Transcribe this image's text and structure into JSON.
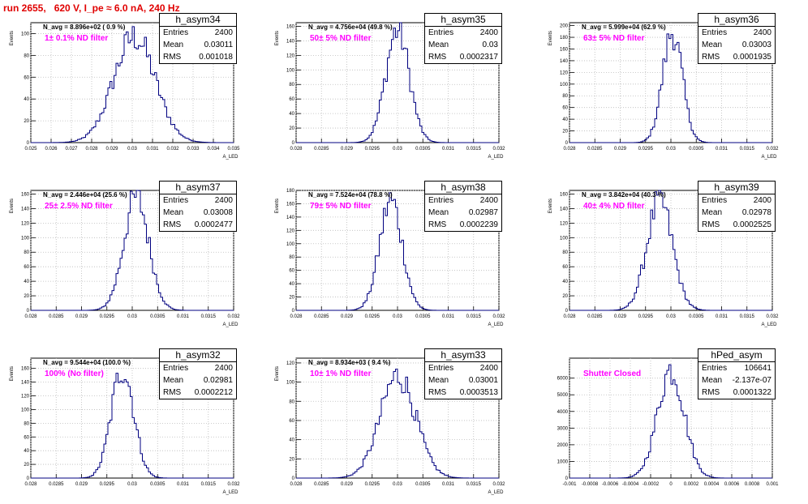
{
  "title": "run 2655,   620 V, I_pe ≈ 6.0 nA, 240 Hz",
  "colors": {
    "title": "#e00000",
    "hist": "#000080",
    "filter_text": "#ff00ff",
    "grid": "#bbbbbb"
  },
  "chart_data": [
    {
      "type": "histogram",
      "name": "h_asym34",
      "stats": {
        "entries_label": "Entries",
        "entries": "2400",
        "mean_label": "Mean",
        "mean": "0.03011",
        "rms_label": "RMS",
        "rms": "0.001018"
      },
      "annotation": "N_avg = 8.896e+02 ( 0.9 %)",
      "filter": "1± 0.1% ND filter",
      "ylabel": "Events",
      "xlabel": "A_LED",
      "xlim": [
        0.025,
        0.035
      ],
      "ylim": [
        0,
        110
      ],
      "xticks": [
        "0.025",
        "0.026",
        "0.027",
        "0.028",
        "0.029",
        "0.03",
        "0.031",
        "0.032",
        "0.033",
        "0.034",
        "0.035"
      ],
      "yticks": [
        0,
        20,
        40,
        60,
        80,
        100
      ],
      "gauss": {
        "mean": 0.03011,
        "sigma": 0.001018,
        "peak": 100
      }
    },
    {
      "type": "histogram",
      "name": "h_asym35",
      "stats": {
        "entries_label": "Entries",
        "entries": "2400",
        "mean_label": "Mean",
        "mean": "0.03",
        "rms_label": "RMS",
        "rms": "0.0002317"
      },
      "annotation": "N_avg = 4.756e+04 (49.8 %)",
      "filter": "50± 5% ND filter",
      "ylabel": "Events",
      "xlabel": "A_LED",
      "xlim": [
        0.028,
        0.032
      ],
      "ylim": [
        0,
        165
      ],
      "xticks": [
        "0.028",
        "0.0285",
        "0.029",
        "0.0295",
        "0.03",
        "0.0305",
        "0.031",
        "0.0315",
        "0.032"
      ],
      "yticks": [
        0,
        20,
        40,
        60,
        80,
        100,
        120,
        140,
        160
      ],
      "gauss": {
        "mean": 0.03,
        "sigma": 0.0002317,
        "peak": 160
      }
    },
    {
      "type": "histogram",
      "name": "h_asym36",
      "stats": {
        "entries_label": "Entries",
        "entries": "2400",
        "mean_label": "Mean",
        "mean": "0.03003",
        "rms_label": "RMS",
        "rms": "0.0001935"
      },
      "annotation": "N_avg = 5.999e+04 (62.9 %)",
      "filter": "63± 5% ND filter",
      "ylabel": "Events",
      "xlabel": "A_LED",
      "xlim": [
        0.028,
        0.032
      ],
      "ylim": [
        0,
        205
      ],
      "xticks": [
        "0.028",
        "0.0285",
        "0.029",
        "0.0295",
        "0.03",
        "0.0305",
        "0.031",
        "0.0315",
        "0.032"
      ],
      "yticks": [
        0,
        20,
        40,
        60,
        80,
        100,
        120,
        140,
        160,
        180,
        200
      ],
      "gauss": {
        "mean": 0.03003,
        "sigma": 0.0001935,
        "peak": 195
      }
    },
    {
      "type": "histogram",
      "name": "h_asym37",
      "stats": {
        "entries_label": "Entries",
        "entries": "2400",
        "mean_label": "Mean",
        "mean": "0.03008",
        "rms_label": "RMS",
        "rms": "0.0002477"
      },
      "annotation": "N_avg = 2.446e+04 (25.6 %)",
      "filter": "25± 2.5% ND filter",
      "ylabel": "Events",
      "xlabel": "A_LED",
      "xlim": [
        0.028,
        0.032
      ],
      "ylim": [
        0,
        165
      ],
      "xticks": [
        "0.028",
        "0.0285",
        "0.029",
        "0.0295",
        "0.03",
        "0.0305",
        "0.031",
        "0.0315",
        "0.032"
      ],
      "yticks": [
        0,
        20,
        40,
        60,
        80,
        100,
        120,
        140,
        160
      ],
      "gauss": {
        "mean": 0.03008,
        "sigma": 0.0002477,
        "peak": 160
      }
    },
    {
      "type": "histogram",
      "name": "h_asym38",
      "stats": {
        "entries_label": "Entries",
        "entries": "2400",
        "mean_label": "Mean",
        "mean": "0.02987",
        "rms_label": "RMS",
        "rms": "0.0002239"
      },
      "annotation": "N_avg = 7.524e+04 (78.8 %)",
      "filter": "79± 5% ND filter",
      "ylabel": "Events",
      "xlabel": "A_LED",
      "xlim": [
        0.028,
        0.032
      ],
      "ylim": [
        0,
        180
      ],
      "xticks": [
        "0.028",
        "0.0285",
        "0.029",
        "0.0295",
        "0.03",
        "0.0305",
        "0.031",
        "0.0315",
        "0.032"
      ],
      "yticks": [
        0,
        20,
        40,
        60,
        80,
        100,
        120,
        140,
        160,
        180
      ],
      "gauss": {
        "mean": 0.02987,
        "sigma": 0.0002239,
        "peak": 170
      }
    },
    {
      "type": "histogram",
      "name": "h_asym39",
      "stats": {
        "entries_label": "Entries",
        "entries": "2400",
        "mean_label": "Mean",
        "mean": "0.02978",
        "rms_label": "RMS",
        "rms": "0.0002525"
      },
      "annotation": "N_avg = 3.842e+04 (40.3 %)",
      "filter": "40± 4% ND filter",
      "ylabel": "Events",
      "xlabel": "A_LED",
      "xlim": [
        0.028,
        0.032
      ],
      "ylim": [
        0,
        165
      ],
      "xticks": [
        "0.028",
        "0.0285",
        "0.029",
        "0.0295",
        "0.03",
        "0.0305",
        "0.031",
        "0.0315",
        "0.032"
      ],
      "yticks": [
        0,
        20,
        40,
        60,
        80,
        100,
        120,
        140,
        160
      ],
      "gauss": {
        "mean": 0.02978,
        "sigma": 0.0002525,
        "peak": 155
      }
    },
    {
      "type": "histogram",
      "name": "h_asym32",
      "stats": {
        "entries_label": "Entries",
        "entries": "2400",
        "mean_label": "Mean",
        "mean": "0.02981",
        "rms_label": "RMS",
        "rms": "0.0002212"
      },
      "annotation": "N_avg = 9.544e+04 (100.0 %)",
      "filter": "100% (No filter)",
      "ylabel": "Events",
      "xlabel": "A_LED",
      "xlim": [
        0.028,
        0.032
      ],
      "ylim": [
        0,
        175
      ],
      "xticks": [
        "0.028",
        "0.0285",
        "0.029",
        "0.0295",
        "0.03",
        "0.0305",
        "0.031",
        "0.0315",
        "0.032"
      ],
      "yticks": [
        0,
        20,
        40,
        60,
        80,
        100,
        120,
        140,
        160
      ],
      "gauss": {
        "mean": 0.02981,
        "sigma": 0.0002212,
        "peak": 165
      }
    },
    {
      "type": "histogram",
      "name": "h_asym33",
      "stats": {
        "entries_label": "Entries",
        "entries": "2400",
        "mean_label": "Mean",
        "mean": "0.03001",
        "rms_label": "RMS",
        "rms": "0.0003513"
      },
      "annotation": "N_avg = 8.934e+03 ( 9.4 %)",
      "filter": "10± 1% ND filter",
      "ylabel": "Events",
      "xlabel": "A_LED",
      "xlim": [
        0.028,
        0.032
      ],
      "ylim": [
        0,
        125
      ],
      "xticks": [
        "0.028",
        "0.0285",
        "0.029",
        "0.0295",
        "0.03",
        "0.0305",
        "0.031",
        "0.0315",
        "0.032"
      ],
      "yticks": [
        0,
        20,
        40,
        60,
        80,
        100,
        120
      ],
      "gauss": {
        "mean": 0.03001,
        "sigma": 0.0003513,
        "peak": 110
      }
    },
    {
      "type": "histogram",
      "name": "hPed_asym",
      "stats": {
        "entries_label": "Entries",
        "entries": "106641",
        "mean_label": "Mean",
        "mean": "-2.137e-07",
        "rms_label": "RMS",
        "rms": "0.0001322"
      },
      "annotation": "",
      "filter": "Shutter Closed",
      "ylabel": "",
      "xlabel": "",
      "xlim": [
        -0.001,
        0.001
      ],
      "ylim": [
        0,
        7200
      ],
      "xticks": [
        "-0.001",
        "-0.0008",
        "-0.0006",
        "-0.0004",
        "-0.0002",
        "0",
        "0.0002",
        "0.0004",
        "0.0006",
        "0.0008",
        "0.001"
      ],
      "yticks": [
        0,
        1000,
        2000,
        3000,
        4000,
        5000,
        6000
      ],
      "gauss": {
        "mean": 0.0,
        "sigma": 0.0001322,
        "peak": 6700
      }
    }
  ]
}
